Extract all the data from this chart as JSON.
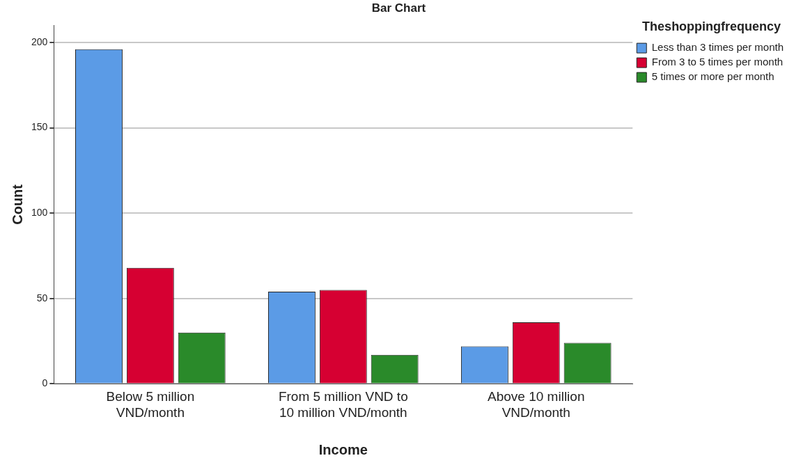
{
  "chart_data": {
    "type": "bar",
    "title": "Bar Chart",
    "xlabel": "Income",
    "ylabel": "Count",
    "legend_title": "Theshoppingfrequency",
    "categories": [
      "Below 5 million VND/month",
      "From 5 million VND to 10 million VND/month",
      "Above 10 million VND/month"
    ],
    "series": [
      {
        "name": "Less than 3 times per month",
        "color": "#5b9be6",
        "values": [
          196,
          54,
          22
        ]
      },
      {
        "name": "From 3 to 5 times per month",
        "color": "#d60032",
        "values": [
          68,
          55,
          36
        ]
      },
      {
        "name": "5 times or more per month",
        "color": "#2a8a2a",
        "values": [
          30,
          17,
          24
        ]
      }
    ],
    "ylim": [
      0,
      210
    ],
    "yticks": [
      0,
      50,
      100,
      150,
      200
    ],
    "grid": "y",
    "legend": "top right"
  }
}
